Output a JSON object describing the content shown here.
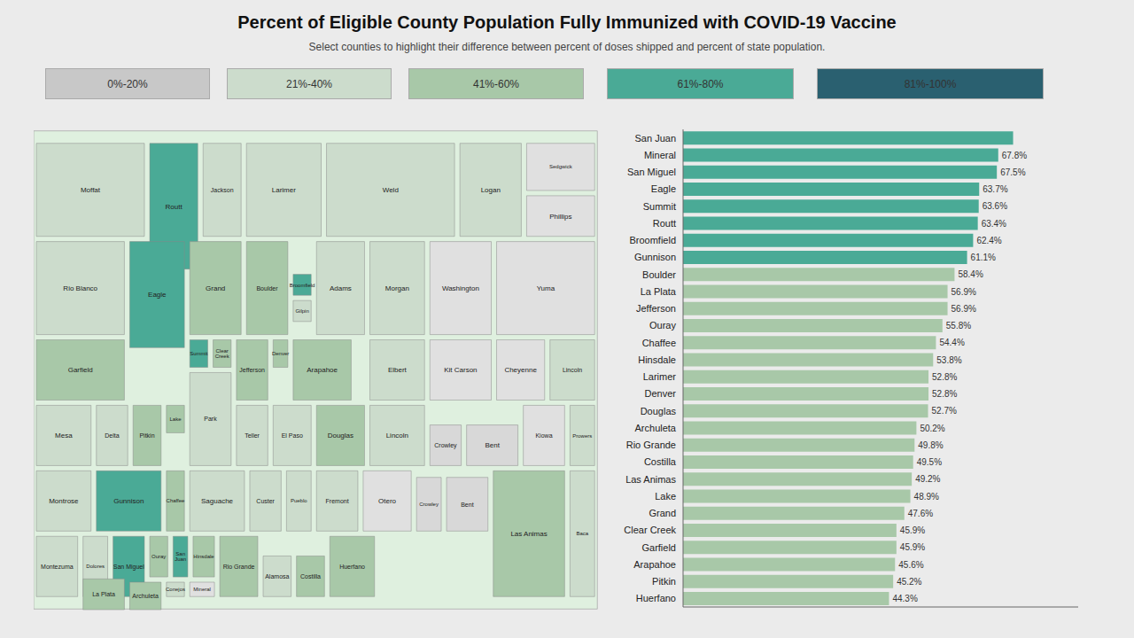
{
  "chart_data": [
    {
      "type": "map",
      "title": "Percent of Eligible County Population Fully Immunized with COVID-19 Vaccine",
      "subtitle": "Select counties to highlight their difference between percent of doses shipped and percent of state population.",
      "tick_labels": false,
      "series": [
        {
          "name": "0%-20%",
          "color": "#c8c8c8"
        },
        {
          "name": "21%-40%",
          "color": "#ccdccc"
        },
        {
          "name": "41%-60%",
          "color": "#a8c8a8"
        },
        {
          "name": "61%-80%",
          "color": "#4aaa96"
        },
        {
          "name": "81%-100%",
          "color": "#2a6070"
        }
      ],
      "categories": [
        "Moffat",
        "Routt",
        "Jackson",
        "Larimer",
        "Weld",
        "Logan",
        "Sedgwick",
        "Phillips",
        "Rio Blanco",
        "Eagle",
        "Grand",
        "Boulder",
        "Broomfield",
        "Gilpin",
        "Adams",
        "Morgan",
        "Washington",
        "Yuma",
        "Garfield",
        "Summit",
        "Clear Creek",
        "Jefferson",
        "Denver",
        "Arapahoe",
        "Douglas",
        "Elbert",
        "Kit Carson",
        "Cheyenne",
        "Lincoln",
        "Mesa",
        "Delta",
        "Pitkin",
        "Lake",
        "Park",
        "Teller",
        "El Paso",
        "Fremont",
        "Lincoln",
        "Crowley",
        "Bent",
        "Kiowa",
        "Prowers",
        "Montrose",
        "Gunnison",
        "Chaffee",
        "Saguache",
        "Custer",
        "Pueblo",
        "Otero",
        "Crowley",
        "Bent",
        "Las Animas",
        "Montezuma",
        "Dolores",
        "San Miguel",
        "Ouray",
        "San Juan",
        "Hinsdale",
        "Mineral",
        "La Plata",
        "Archuleta",
        "Conejos",
        "Rio Grande",
        "Alamosa",
        "Costilla",
        "Huerfano",
        "Baca"
      ],
      "colors": [
        "#ccdccc",
        "#4aaa96",
        "#ccdccc",
        "#ccdccc",
        "#ccdccc",
        "#ccdccc",
        "#e0e0e0",
        "#e0e0e0",
        "#ccdccc",
        "#4aaa96",
        "#a8c8a8",
        "#a8c8a8",
        "#4aaa96",
        "#ccdccc",
        "#ccdccc",
        "#ccdccc",
        "#e0e0e0",
        "#e0e0e0",
        "#a8c8a8",
        "#4aaa96",
        "#a8c8a8",
        "#a8c8a8",
        "#a8c8a8",
        "#a8c8a8",
        "#a8c8a8",
        "#ccdccc",
        "#e0e0e0",
        "#e0e0e0",
        "#ccdccc",
        "#ccdccc",
        "#ccdccc",
        "#a8c8a8",
        "#a8c8a8",
        "#ccdccc",
        "#ccdccc",
        "#ccdccc",
        "#ccdccc",
        "#ccdccc",
        "#d8d8d8",
        "#d8d8d8",
        "#e0e0e0",
        "#ccdccc",
        "#ccdccc",
        "#4aaa96",
        "#a8c8a8",
        "#ccdccc",
        "#ccdccc",
        "#ccdccc",
        "#e0e0e0",
        "#d8d8d8",
        "#d8d8d8",
        "#a8c8a8",
        "#ccdccc",
        "#ccdccc",
        "#4aaa96",
        "#a8c8a8",
        "#4aaa96",
        "#a8c8a8",
        "#e0e0e0",
        "#a8c8a8",
        "#a8c8a8",
        "#ccdccc",
        "#a8c8a8",
        "#ccdccc",
        "#a8c8a8",
        "#a8c8a8",
        "#ccdccc"
      ]
    },
    {
      "type": "bar",
      "orientation": "horizontal",
      "tick_labels": "y",
      "data_labels": true,
      "xlim": [
        0,
        85
      ],
      "categories": [
        "San Juan",
        "Mineral",
        "San Miguel",
        "Eagle",
        "Summit",
        "Routt",
        "Broomfield",
        "Gunnison",
        "Boulder",
        "La Plata",
        "Jefferson",
        "Ouray",
        "Chaffee",
        "Hinsdale",
        "Larimer",
        "Denver",
        "Douglas",
        "Archuleta",
        "Rio Grande",
        "Costilla",
        "Las Animas",
        "Lake",
        "Grand",
        "Clear Creek",
        "Garfield",
        "Arapahoe",
        "Pitkin",
        "Huerfano"
      ],
      "values": [
        71.0,
        67.8,
        67.5,
        63.7,
        63.6,
        63.4,
        62.4,
        61.1,
        58.4,
        56.9,
        56.9,
        55.8,
        54.4,
        53.8,
        52.8,
        52.8,
        52.7,
        50.2,
        49.8,
        49.5,
        49.2,
        48.9,
        47.6,
        45.9,
        45.9,
        45.6,
        45.2,
        44.3
      ],
      "value_labels": [
        null,
        "67.8%",
        "67.5%",
        "63.7%",
        "63.6%",
        "63.4%",
        "62.4%",
        "61.1%",
        "58.4%",
        "56.9%",
        "56.9%",
        "55.8%",
        "54.4%",
        "53.8%",
        "52.8%",
        "52.8%",
        "52.7%",
        "50.2%",
        "49.8%",
        "49.5%",
        "49.2%",
        "48.9%",
        "47.6%",
        "45.9%",
        "45.9%",
        "45.6%",
        "45.2%",
        "44.3%"
      ],
      "colors": [
        "#4aaa96",
        "#4aaa96",
        "#4aaa96",
        "#4aaa96",
        "#4aaa96",
        "#4aaa96",
        "#4aaa96",
        "#4aaa96",
        "#a8c8a8",
        "#a8c8a8",
        "#a8c8a8",
        "#a8c8a8",
        "#a8c8a8",
        "#a8c8a8",
        "#a8c8a8",
        "#a8c8a8",
        "#a8c8a8",
        "#a8c8a8",
        "#a8c8a8",
        "#a8c8a8",
        "#a8c8a8",
        "#a8c8a8",
        "#a8c8a8",
        "#a8c8a8",
        "#a8c8a8",
        "#a8c8a8",
        "#a8c8a8",
        "#a8c8a8"
      ]
    }
  ]
}
